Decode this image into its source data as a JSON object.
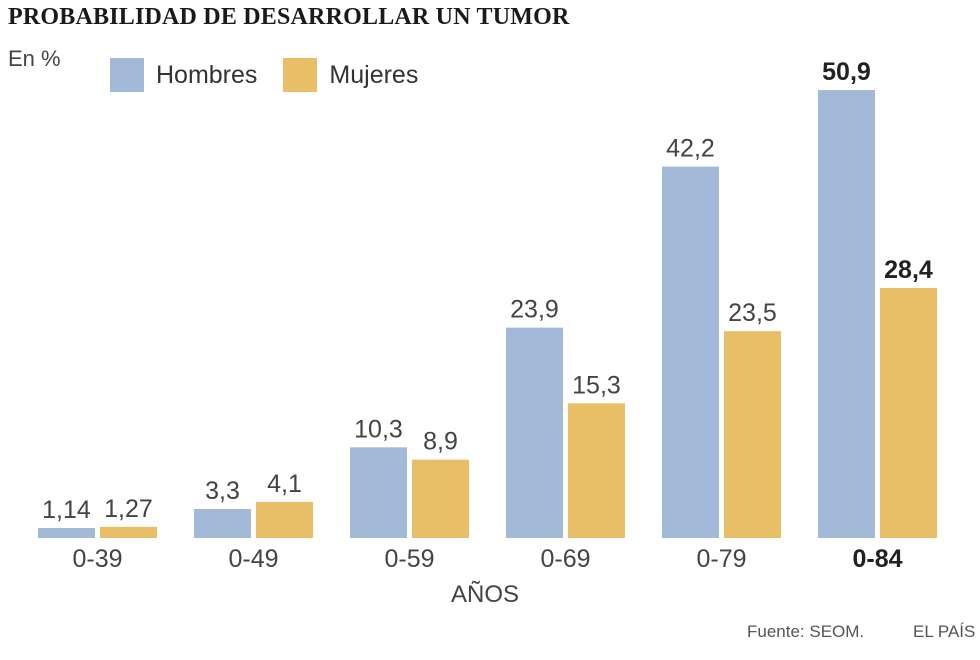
{
  "header": {
    "title": "PROBABILIDAD DE DESARROLLAR UN TUMOR",
    "unit": "En %"
  },
  "colors": {
    "hombres": "#a2b9d7",
    "mujeres": "#e8be67",
    "text": "#333333"
  },
  "chart_data": {
    "type": "bar",
    "title": "PROBABILIDAD DE DESARROLLAR UN TUMOR",
    "ylabel": "En %",
    "xlabel": "AÑOS",
    "categories": [
      "0-39",
      "0-49",
      "0-59",
      "0-69",
      "0-79",
      "0-84"
    ],
    "category_labels": [
      "0-39",
      "0-49",
      "0-59",
      "0-69",
      "0-79",
      "0-84"
    ],
    "series": [
      {
        "name": "Hombres",
        "values": [
          1.14,
          3.3,
          10.3,
          23.9,
          42.2,
          50.9
        ],
        "labels": [
          "1,14",
          "3,3",
          "10,3",
          "23,9",
          "42,2",
          "50,9"
        ]
      },
      {
        "name": "Mujeres",
        "values": [
          1.27,
          4.1,
          8.9,
          15.3,
          23.5,
          28.4
        ],
        "labels": [
          "1,27",
          "4,1",
          "8,9",
          "15,3",
          "23,5",
          "28,4"
        ]
      }
    ],
    "highlight_category": "0-84",
    "ylim": [
      0,
      50.9
    ],
    "grid": false,
    "legend": "top-left"
  },
  "footer": {
    "source": "Fuente: SEOM.",
    "brand": "EL PAÍS"
  }
}
